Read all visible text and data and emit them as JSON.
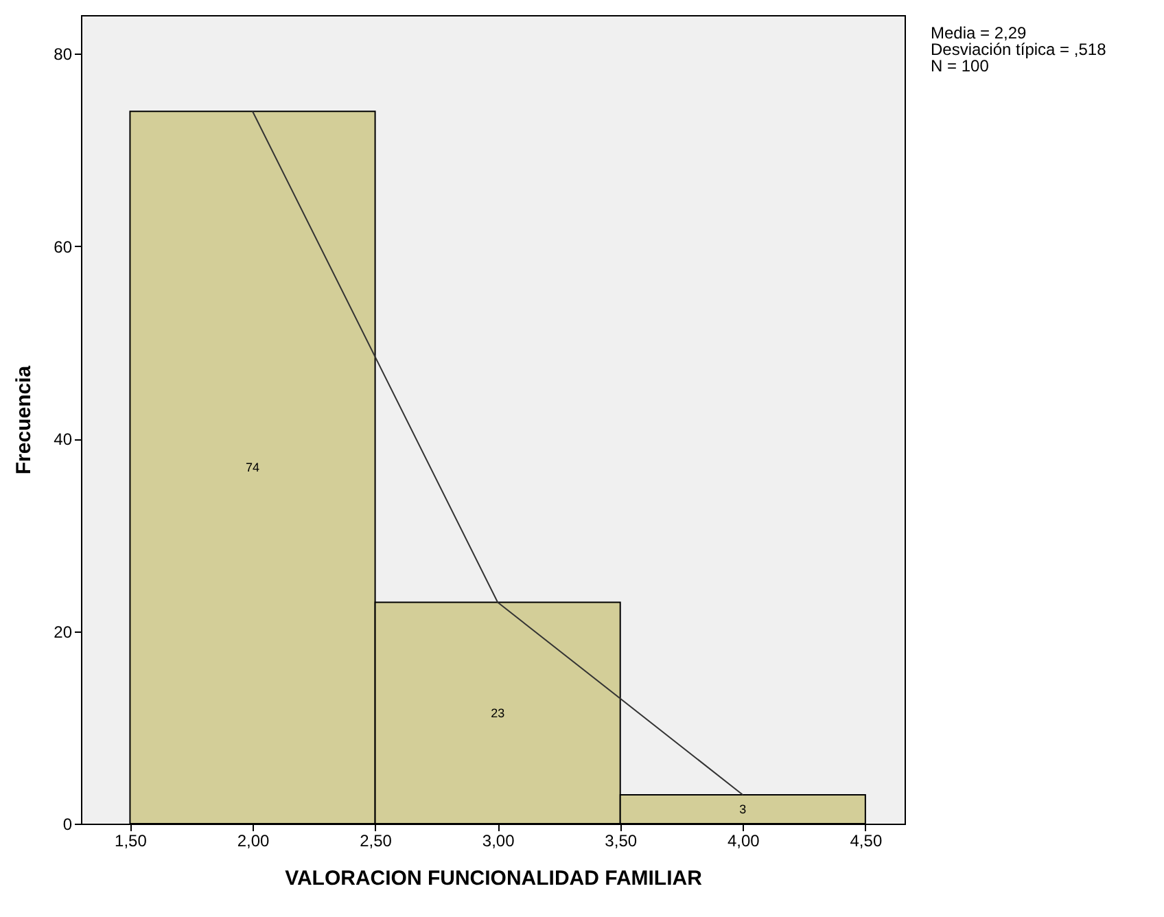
{
  "chart_data": {
    "type": "histogram",
    "xlabel": "VALORACION FUNCIONALIDAD FAMILIAR",
    "ylabel": "Frecuencia",
    "bins": [
      1.5,
      2.5,
      3.5,
      4.5
    ],
    "values": [
      74,
      23,
      3
    ],
    "color": "#d3ce98",
    "value_labels": [
      "74",
      "23",
      "3"
    ],
    "series": [
      {
        "type": "line",
        "x": [
          2,
          3,
          4
        ],
        "values": [
          74,
          23,
          3
        ],
        "color": "#333333"
      }
    ],
    "xlim": [
      1.3,
      4.66
    ],
    "xticks": [
      {
        "value": 1.5,
        "label": "1,50"
      },
      {
        "value": 2,
        "label": "2,00"
      },
      {
        "value": 2.5,
        "label": "2,50"
      },
      {
        "value": 3,
        "label": "3,00"
      },
      {
        "value": 3.5,
        "label": "3,50"
      },
      {
        "value": 4,
        "label": "4,00"
      },
      {
        "value": 4.5,
        "label": "4,50"
      }
    ],
    "ylim": [
      0,
      84
    ],
    "yticks": [
      0,
      20,
      40,
      60,
      80
    ],
    "annotations": [
      "Media = 2,29",
      "Desviación típica = ,518",
      "N = 100"
    ]
  }
}
